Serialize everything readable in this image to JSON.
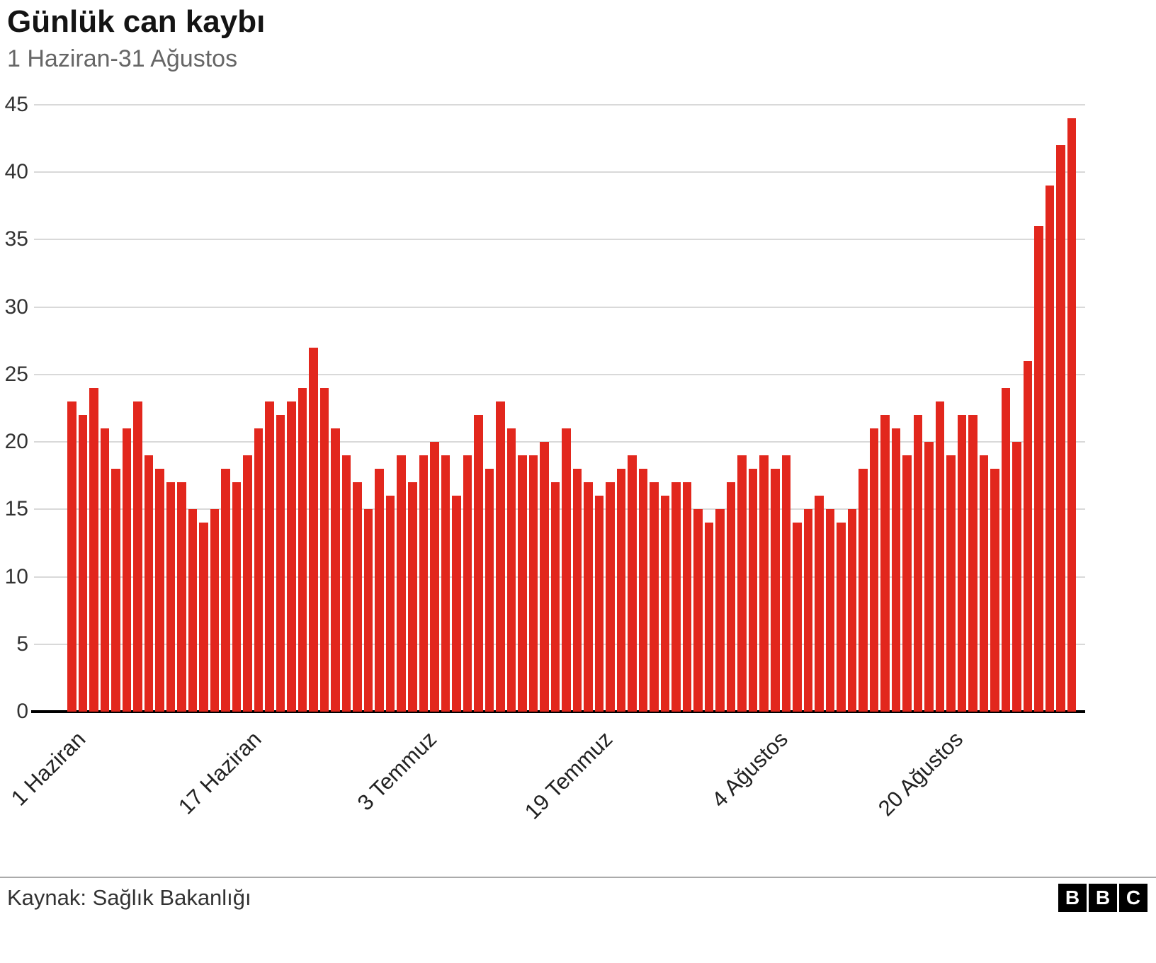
{
  "title": "Günlük can kaybı",
  "subtitle": "1 Haziran-31 Ağustos",
  "source": "Kaynak: Sağlık Bakanlığı",
  "logo_letters": {
    "b1": "B",
    "b2": "B",
    "b3": "C"
  },
  "colors": {
    "bar": "#e2271d",
    "gridline": "#d9d9d9",
    "baseline": "#000000",
    "title": "#141414",
    "subtitle": "#666666"
  },
  "chart_data": {
    "type": "bar",
    "title": "Günlük can kaybı",
    "subtitle": "1 Haziran-31 Ağustos",
    "xlabel": "",
    "ylabel": "",
    "ylim": [
      0,
      45
    ],
    "yticks": [
      0,
      5,
      10,
      15,
      20,
      25,
      30,
      35,
      40,
      45
    ],
    "grid": true,
    "legend": "none",
    "bar_color": "#e2271d",
    "x_tick_labels": [
      {
        "index": 0,
        "label": "1 Haziran"
      },
      {
        "index": 16,
        "label": "17 Haziran"
      },
      {
        "index": 32,
        "label": "3 Temmuz"
      },
      {
        "index": 48,
        "label": "19 Temmuz"
      },
      {
        "index": 64,
        "label": "4 Ağustos"
      },
      {
        "index": 80,
        "label": "20 Ağustos"
      }
    ],
    "values": [
      23,
      22,
      24,
      21,
      18,
      21,
      23,
      19,
      18,
      17,
      17,
      15,
      14,
      15,
      18,
      17,
      19,
      21,
      23,
      22,
      23,
      24,
      27,
      24,
      21,
      19,
      17,
      15,
      18,
      16,
      19,
      17,
      19,
      20,
      19,
      16,
      19,
      22,
      18,
      23,
      21,
      19,
      19,
      20,
      17,
      21,
      18,
      17,
      16,
      17,
      18,
      19,
      18,
      17,
      16,
      17,
      17,
      15,
      14,
      15,
      17,
      19,
      18,
      19,
      18,
      19,
      14,
      15,
      16,
      15,
      14,
      15,
      18,
      21,
      22,
      21,
      19,
      22,
      20,
      23,
      19,
      22,
      22,
      19,
      18,
      24,
      20,
      26,
      36,
      39,
      42,
      44
    ]
  }
}
